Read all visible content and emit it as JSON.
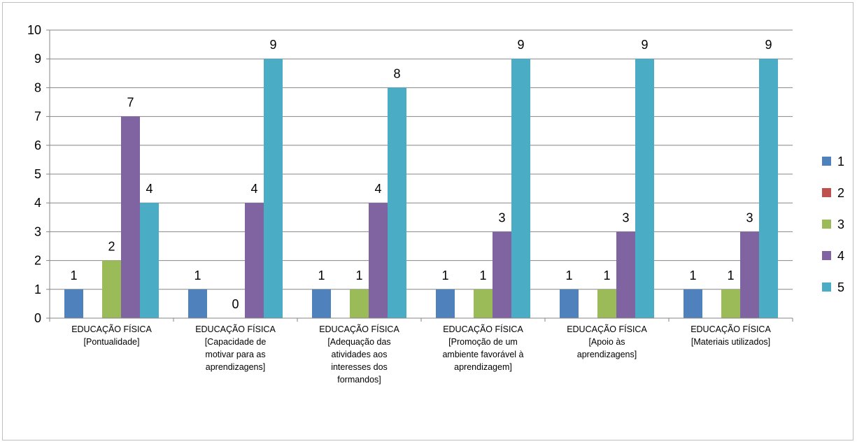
{
  "chart_data": {
    "type": "bar",
    "title": "",
    "xlabel": "",
    "ylabel": "",
    "ylim": [
      0,
      10
    ],
    "y_ticks": [
      "0",
      "1",
      "2",
      "3",
      "4",
      "5",
      "6",
      "7",
      "8",
      "9",
      "10"
    ],
    "grid": true,
    "legend_position": "right",
    "categories": [
      [
        "EDUCAÇÃO FÍSICA",
        "[Pontualidade]"
      ],
      [
        "EDUCAÇÃO FÍSICA",
        "[Capacidade de",
        "motivar para as",
        "aprendizagens]"
      ],
      [
        "EDUCAÇÃO FÍSICA",
        "[Adequação das",
        "atividades aos",
        "interesses dos",
        "formandos]"
      ],
      [
        "EDUCAÇÃO FÍSICA",
        "[Promoção de um",
        "ambiente favorável à",
        "aprendizagem]"
      ],
      [
        "EDUCAÇÃO FÍSICA",
        "[Apoio às",
        "aprendizagens]"
      ],
      [
        "EDUCAÇÃO FÍSICA",
        "[Materiais utilizados]"
      ]
    ],
    "series": [
      {
        "name": "1",
        "color": "#4f81bd",
        "values": [
          1,
          1,
          1,
          1,
          1,
          1
        ],
        "labels": [
          "1",
          "1",
          "1",
          "1",
          "1",
          "1"
        ]
      },
      {
        "name": "2",
        "color": "#c0504d",
        "values": [
          0,
          0,
          0,
          0,
          0,
          0
        ],
        "labels": [
          "",
          "",
          "",
          "",
          "",
          ""
        ]
      },
      {
        "name": "3",
        "color": "#9bbb59",
        "values": [
          2,
          0,
          1,
          1,
          1,
          1
        ],
        "labels": [
          "2",
          "0",
          "1",
          "1",
          "1",
          "1"
        ]
      },
      {
        "name": "4",
        "color": "#8064a2",
        "values": [
          7,
          4,
          4,
          3,
          3,
          3
        ],
        "labels": [
          "7",
          "4",
          "4",
          "3",
          "3",
          "3"
        ]
      },
      {
        "name": "5",
        "color": "#4bacc6",
        "values": [
          4,
          9,
          8,
          9,
          9,
          9
        ],
        "labels": [
          "4",
          "9",
          "8",
          "9",
          "9",
          "9"
        ]
      }
    ]
  }
}
